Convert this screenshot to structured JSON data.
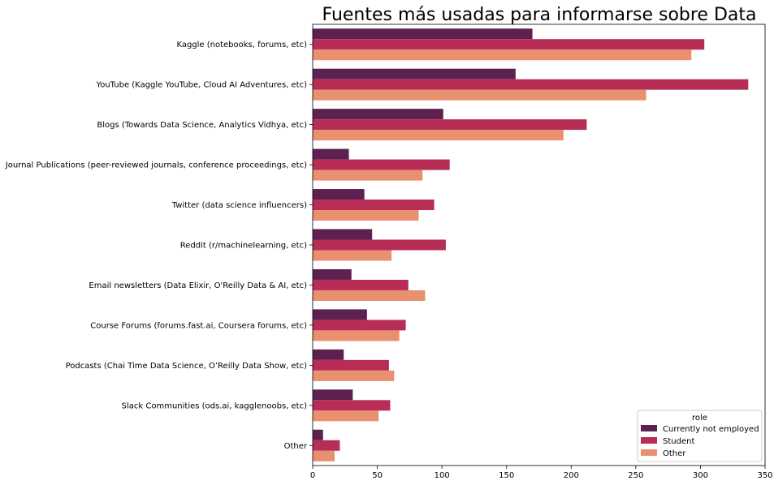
{
  "chart_data": {
    "type": "bar",
    "orientation": "horizontal",
    "title": "Fuentes más usadas para informarse sobre Data",
    "xlabel": "",
    "ylabel": "",
    "xlim": [
      0,
      350
    ],
    "xticks": [
      0,
      50,
      100,
      150,
      200,
      250,
      300,
      350
    ],
    "grid": false,
    "categories": [
      "Kaggle (notebooks, forums, etc)",
      "YouTube (Kaggle YouTube, Cloud AI Adventures, etc)",
      "Blogs (Towards Data Science, Analytics Vidhya, etc)",
      "Journal Publications (peer-reviewed journals, conference proceedings, etc)",
      "Twitter (data science influencers)",
      "Reddit (r/machinelearning, etc)",
      "Email newsletters (Data Elixir, O'Reilly Data & AI, etc)",
      "Course Forums (forums.fast.ai, Coursera forums, etc)",
      "Podcasts (Chai Time Data Science, O’Reilly Data Show, etc)",
      "Slack Communities (ods.ai, kagglenoobs, etc)",
      "Other"
    ],
    "series": [
      {
        "name": "Currently not employed",
        "color": "#5c2150",
        "values": [
          170,
          157,
          101,
          28,
          40,
          46,
          30,
          42,
          24,
          31,
          8
        ]
      },
      {
        "name": "Student",
        "color": "#b72d56",
        "values": [
          303,
          337,
          212,
          106,
          94,
          103,
          74,
          72,
          59,
          60,
          21
        ]
      },
      {
        "name": "Other",
        "color": "#e8906f",
        "values": [
          293,
          258,
          194,
          85,
          82,
          61,
          87,
          67,
          63,
          51,
          17
        ]
      }
    ],
    "legend": {
      "title": "role",
      "position": "lower right"
    }
  }
}
